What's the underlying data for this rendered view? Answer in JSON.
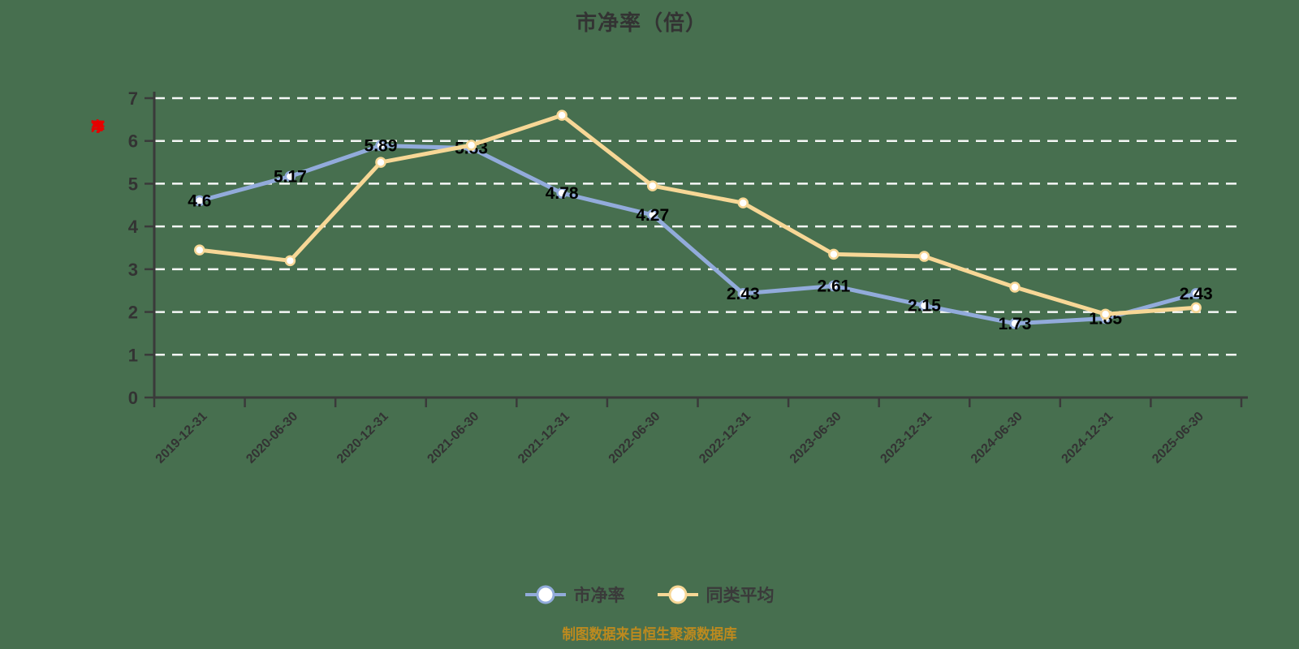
{
  "title": "市净率（倍）",
  "y_axis_name": "市净率",
  "source_note": "制图数据来自恒生聚源数据库",
  "colors": {
    "background": "#476F4F",
    "title_text": "#333333",
    "axis": "#3A3A3A",
    "gridline": "#FFFFFF",
    "tick_label": "#333333",
    "value_label": "#000000",
    "y_axis_name_red": "#E60000",
    "source_text": "#BD8A1E",
    "legend_text": "#3A3A3A",
    "series_pbr": "#92ABDB",
    "series_peer_avg": "#F7D796",
    "marker_fill": "#FFFFFF"
  },
  "legend": {
    "items": [
      {
        "label": "市净率"
      },
      {
        "label": "同类平均"
      }
    ]
  },
  "chart_data": {
    "type": "line",
    "title": "市净率（倍）",
    "xlabel": "",
    "ylabel": "市净率",
    "ylim": [
      0,
      7
    ],
    "y_ticks": [
      0,
      1,
      2,
      3,
      4,
      5,
      6,
      7
    ],
    "grid": "horizontal-dashed-white",
    "legend_position": "bottom",
    "categories": [
      "2019-12-31",
      "2020-06-30",
      "2020-12-31",
      "2021-06-30",
      "2021-12-31",
      "2022-06-30",
      "2022-12-31",
      "2023-06-30",
      "2023-12-31",
      "2024-06-30",
      "2024-12-31",
      "2025-06-30"
    ],
    "series": [
      {
        "name": "市净率",
        "key": "pbr",
        "color": "#92ABDB",
        "values": [
          4.6,
          5.17,
          5.89,
          5.83,
          4.78,
          4.27,
          2.43,
          2.61,
          2.15,
          1.73,
          1.85,
          2.43
        ],
        "point_labels": [
          "4.6",
          "5.17",
          "5.89",
          "5.83",
          "4.78",
          "4.27",
          "2.43",
          "2.61",
          "2.15",
          "1.73",
          "1.85",
          "2.43"
        ],
        "show_labels": true
      },
      {
        "name": "同类平均",
        "key": "peer-avg",
        "color": "#F7D796",
        "values": [
          3.45,
          3.2,
          5.5,
          5.9,
          6.6,
          4.95,
          4.55,
          3.35,
          3.3,
          2.58,
          1.95,
          2.1
        ],
        "point_labels": [],
        "show_labels": false
      }
    ]
  }
}
